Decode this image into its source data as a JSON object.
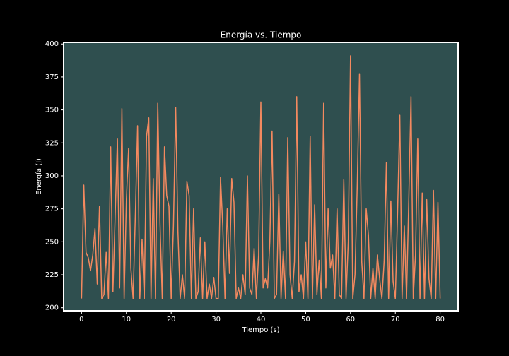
{
  "chart_data": {
    "type": "line",
    "title": "Energía vs. Tiempo",
    "x_label": "Tiempo (s)",
    "y_label": "Energía (J)",
    "x": [
      0,
      0.5,
      1,
      1.5,
      2,
      2.5,
      3,
      3.5,
      4,
      4.5,
      5,
      5.5,
      6,
      6.5,
      7,
      7.5,
      8,
      8.5,
      9,
      9.5,
      10,
      10.5,
      11,
      11.5,
      12,
      12.5,
      13,
      13.5,
      14,
      14.5,
      15,
      15.5,
      16,
      16.5,
      17,
      17.5,
      18,
      18.5,
      19,
      19.5,
      20,
      20.5,
      21,
      21.5,
      22,
      22.5,
      23,
      23.5,
      24,
      24.5,
      25,
      25.5,
      26,
      26.5,
      27,
      27.5,
      28,
      28.5,
      29,
      29.5,
      30,
      30.5,
      31,
      31.5,
      32,
      32.5,
      33,
      33.5,
      34,
      34.5,
      35,
      35.5,
      36,
      36.5,
      37,
      37.5,
      38,
      38.5,
      39,
      39.5,
      40,
      40.5,
      41,
      41.5,
      42,
      42.5,
      43,
      43.5,
      44,
      44.5,
      45,
      45.5,
      46,
      46.5,
      47,
      47.5,
      48,
      48.5,
      49,
      49.5,
      50,
      50.5,
      51,
      51.5,
      52,
      52.5,
      53,
      53.5,
      54,
      54.5,
      55,
      55.5,
      56,
      56.5,
      57,
      57.5,
      58,
      58.5,
      59,
      59.5,
      60,
      60.5,
      61,
      61.5,
      62,
      62.5,
      63,
      63.5,
      64,
      64.5,
      65,
      65.5,
      66,
      66.5,
      67,
      67.5,
      68,
      68.5,
      69,
      69.5,
      70,
      70.5,
      71,
      71.5,
      72,
      72.5,
      73,
      73.5,
      74,
      74.5,
      75,
      75.5,
      76,
      76.5,
      77,
      77.5,
      78,
      78.5,
      79,
      79.5,
      80
    ],
    "series": [
      {
        "color": "#f4895f",
        "values": [
          207,
          293,
          242,
          238,
          228,
          240,
          260,
          218,
          277,
          207,
          210,
          242,
          207,
          322,
          212,
          270,
          328,
          215,
          351,
          207,
          282,
          321,
          230,
          207,
          270,
          338,
          207,
          252,
          207,
          330,
          344,
          207,
          298,
          207,
          355,
          264,
          207,
          322,
          285,
          277,
          207,
          262,
          352,
          258,
          207,
          225,
          207,
          296,
          285,
          207,
          275,
          207,
          212,
          253,
          207,
          250,
          207,
          218,
          207,
          223,
          207,
          207,
          299,
          262,
          207,
          275,
          226,
          298,
          280,
          207,
          215,
          207,
          225,
          210,
          300,
          215,
          210,
          245,
          207,
          240,
          356,
          215,
          222,
          215,
          250,
          334,
          207,
          210,
          286,
          207,
          243,
          207,
          329,
          225,
          207,
          235,
          360,
          212,
          225,
          207,
          250,
          207,
          330,
          207,
          278,
          210,
          236,
          207,
          355,
          215,
          275,
          230,
          240,
          207,
          275,
          210,
          207,
          297,
          207,
          250,
          391,
          207,
          225,
          292,
          377,
          235,
          207,
          275,
          255,
          207,
          230,
          207,
          240,
          222,
          207,
          235,
          310,
          207,
          281,
          220,
          207,
          272,
          346,
          207,
          262,
          207,
          282,
          360,
          207,
          240,
          328,
          207,
          287,
          207,
          282,
          222,
          207,
          289,
          207,
          280,
          207
        ]
      }
    ],
    "xlim": [
      -4,
      84
    ],
    "ylim": [
      197.7,
      401.2
    ],
    "xticks": [
      0,
      10,
      20,
      30,
      40,
      50,
      60,
      70,
      80
    ],
    "yticks": [
      200,
      225,
      250,
      275,
      300,
      325,
      350,
      375,
      400
    ],
    "background": "#2f4f4f"
  }
}
